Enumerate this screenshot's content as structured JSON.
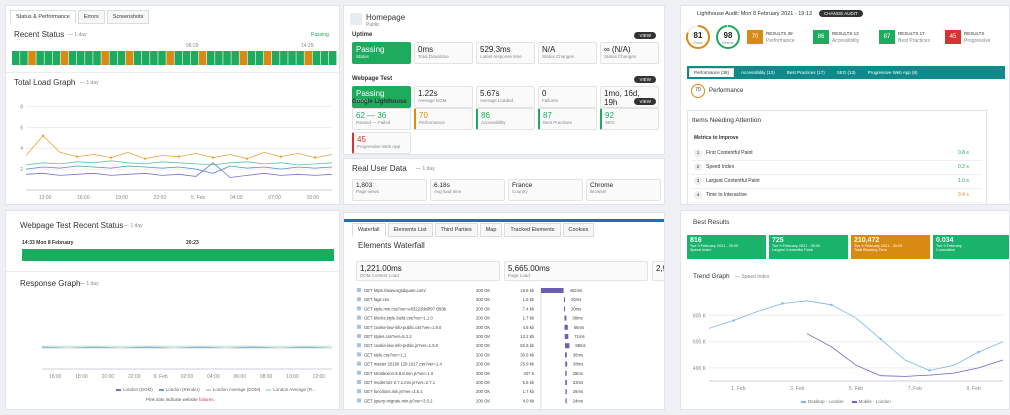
{
  "p1": {
    "tabs": [
      "Status & Performance",
      "Errors",
      "Screenshots"
    ],
    "status_title": "Recent Status",
    "status_period": "— 1 day",
    "legend": [
      "Passing"
    ],
    "status_times": [
      "06:29",
      "14:29"
    ],
    "segments": [
      1,
      1,
      0,
      1,
      1,
      1,
      0,
      1,
      1,
      1,
      1,
      0,
      1,
      1,
      0,
      1,
      1,
      1,
      1,
      0,
      1,
      1,
      1,
      0,
      1,
      1,
      1,
      1,
      0,
      1,
      1,
      0,
      1,
      1,
      1,
      1,
      0,
      1,
      1,
      1
    ],
    "load": {
      "title": "Total Load Graph",
      "period": "— 1 day",
      "ylim": [
        0,
        9
      ],
      "yticks": [
        2,
        4,
        6,
        8
      ],
      "x_tick_labels": [
        "13:00",
        "16:00",
        "19:00",
        "22:00",
        "5. Feb",
        "04:00",
        "07:00",
        "10:00"
      ],
      "series": [
        {
          "color": "#e8a33c",
          "values": [
            3.3,
            5.2,
            3.6,
            3.2,
            3.4,
            3.1,
            3.6,
            3.0,
            3.3,
            3.2,
            3.5,
            3.1,
            3.4,
            3.0,
            3.6,
            3.2,
            3.5,
            3.1,
            3.4
          ]
        },
        {
          "color": "#7b6fd0",
          "values": [
            1.5,
            1.6,
            1.4,
            1.5,
            1.6,
            1.4,
            1.5,
            1.6,
            1.4,
            1.5,
            1.3,
            2.6,
            1.2,
            1.4,
            1.6,
            1.4,
            1.5,
            1.4,
            1.5
          ]
        },
        {
          "color": "#4d8fd6",
          "values": [
            2.0,
            2.2,
            2.1,
            2.3,
            2.2,
            2.1,
            2.3,
            2.2,
            2.1,
            2.2,
            2.0,
            1.6,
            2.3,
            2.1,
            2.2,
            2.0,
            2.2,
            2.1,
            2.2
          ]
        },
        {
          "color": "#5cc79b",
          "values": [
            2.4,
            2.6,
            2.5,
            2.7,
            2.6,
            2.8,
            2.6,
            2.5,
            2.7,
            2.6,
            2.5,
            2.4,
            2.6,
            2.7,
            2.5,
            2.6,
            2.4,
            2.5,
            2.6
          ]
        }
      ]
    }
  },
  "p2": {
    "title": "Homepage",
    "subtitle": "Public",
    "view": "VIEW",
    "sections": [
      {
        "name": "Uptime",
        "stats": [
          [
            "Passing",
            "Status"
          ],
          [
            "0ms",
            "Total Downtime"
          ],
          [
            "529.3ms",
            "Latest response time"
          ],
          [
            "N/A",
            "Status Changes"
          ],
          [
            "∞ (N/A)",
            "Status Changes"
          ]
        ]
      },
      {
        "name": "Webpage Test",
        "stats": [
          [
            "Passing",
            "Status"
          ],
          [
            "1.22s",
            "Average DOM"
          ],
          [
            "5.67s",
            "Average Loaded"
          ],
          [
            "0",
            "Failures"
          ],
          [
            "1mo, 16d, 19h",
            "Status Change"
          ]
        ]
      }
    ],
    "lighthouse": {
      "name": "Google Lighthouse",
      "passed": "62 — 36",
      "passed_label": "Passed — Failed",
      "scores": [
        [
          70,
          "Performance"
        ],
        [
          86,
          "Accessibility"
        ],
        [
          87,
          "Best Practices"
        ],
        [
          92,
          "SEO"
        ],
        [
          45,
          "Progressive Web App"
        ]
      ]
    },
    "rum": {
      "title": "Real User Data",
      "period": "— 1 day",
      "stats": [
        [
          "1,803",
          "Page views"
        ],
        [
          "6.18s",
          "Avg load time"
        ],
        [
          "France",
          "Country"
        ],
        [
          "Chrome",
          "Browser"
        ]
      ]
    }
  },
  "p3": {
    "title": "Lighthouse Audit: Mon 8 February 2021 - 19:13",
    "change": "CHANGE AUDIT",
    "score": 81,
    "score_label": "Score",
    "results": 98,
    "results_label": "Results",
    "cats": [
      [
        70,
        "RESULTS 38",
        "Performance"
      ],
      [
        86,
        "RESULTS 13",
        "Accessibility"
      ],
      [
        87,
        "RESULTS 17",
        "Best Practices"
      ],
      [
        45,
        "RESULTS",
        "Progressive"
      ]
    ],
    "tabs": [
      "Performance (38)",
      "Accessibility (13)",
      "Best Practices (17)",
      "SEO (13)",
      "Progressive Web App (8)"
    ],
    "perf": 70,
    "perf_label": "Performance",
    "attention": "Items Needing Attention",
    "metrics": "Metrics to Improve",
    "items": [
      [
        "1",
        "First Contentful Paint",
        "0.8 s"
      ],
      [
        "2",
        "Speed Index",
        "0.2 s"
      ],
      [
        "3",
        "Largest Contentful Paint",
        "1.0 s"
      ],
      [
        "4",
        "Time to Interactive",
        "3.4 s"
      ]
    ]
  },
  "p4": {
    "title": "Webpage Test Recent Status",
    "period": "— 1 day",
    "times": [
      "14:33 Mon 8 February",
      "20:23"
    ],
    "response": {
      "title": "Response Graph",
      "period": "— 1 day",
      "ylim": [
        0,
        4
      ],
      "x_tick_labels": [
        "16:00",
        "18:00",
        "20:00",
        "22:00",
        "9. Feb",
        "02:00",
        "04:00",
        "06:00",
        "08:00",
        "10:00",
        "12:00"
      ],
      "series": [
        {
          "name": "London (DOM)",
          "color": "#6b6fd6",
          "values": [
            1.2,
            1.2,
            1.2,
            1.2,
            1.2,
            1.2,
            1.2,
            1.2,
            1.2,
            1.2,
            1.2,
            1.2
          ]
        },
        {
          "name": "London (Render)",
          "color": "#5ba0e0",
          "values": [
            1.25,
            1.2,
            1.25,
            1.2,
            1.25,
            1.2,
            1.25,
            1.2,
            1.25,
            1.2,
            1.25,
            1.2
          ]
        },
        {
          "name": "London Average (DOM)",
          "color": "#cfcfcf",
          "values": [
            1.2,
            1.2,
            1.2,
            1.2,
            1.2,
            1.2,
            1.2,
            1.2,
            1.2,
            1.2,
            1.2,
            1.2
          ]
        },
        {
          "name": "London Average (R...",
          "color": "#b8e8cc",
          "values": [
            1.3,
            1.3,
            1.3,
            1.3,
            1.3,
            1.3,
            1.3,
            1.3,
            1.3,
            1.3,
            1.3,
            1.3
          ]
        }
      ],
      "note": "Pink dots indicate website ",
      "note_em": "failures."
    }
  },
  "p5": {
    "tabs": [
      "Waterfall",
      "Elements List",
      "Third Parties",
      "Map",
      "Tracked Elements",
      "Cookies"
    ],
    "title": "Elements Waterfall",
    "summary": [
      [
        "1,221.00ms",
        "DOM Content Load"
      ],
      [
        "5,665.00ms",
        "Page Load"
      ],
      [
        "2,9",
        ""
      ]
    ],
    "scale_max": 1200,
    "rows": [
      [
        "GET https://www.sgsdquote.com/",
        "200 OK",
        "19.6 kb",
        0,
        452,
        "452ms"
      ],
      [
        "GET fags.css",
        "200 OK",
        "1.5 kb",
        460,
        20,
        "20ms"
      ],
      [
        "GET style.min.css?ver=e83221bb0f97 B93b",
        "200 OK",
        "7.4 kb",
        460,
        20,
        "20ms"
      ],
      [
        "GET blocks.style.build.css?ver=1.1.0",
        "200 OK",
        "1.7 kb",
        470,
        38,
        "38ms"
      ],
      [
        "GET cookie-law-info-public.css?ver=1.9.0",
        "200 OK",
        "4.5 kb",
        470,
        66,
        "66ms"
      ],
      [
        "GET styles.css?ver=5.2.2",
        "200 OK",
        "12.2 kb",
        475,
        71,
        "71ms"
      ],
      [
        "GET cookie-law-info-public.js?ver=1.9.0",
        "200 OK",
        "82.6 kb",
        480,
        88,
        "88ms"
      ],
      [
        "GET style.css?ver=1.1",
        "200 OK",
        "30.6 kb",
        480,
        36,
        "36ms"
      ],
      [
        "GET master 20190 129 1917.css?ver=1.4",
        "200 OK",
        "25.9 kb",
        485,
        38,
        "38ms"
      ],
      [
        "GET stroldexion-5.8.8.min.js?ver=1.0",
        "200 OK",
        "347 b",
        485,
        28,
        "28ms"
      ],
      [
        "GET modernizr-2.7.1.min.js?ver=2.7.1",
        "200 OK",
        "5.6 kb",
        485,
        33,
        "33ms"
      ],
      [
        "GET functions.min.js?ver=3.5.1",
        "200 OK",
        "1.7 kb",
        490,
        26,
        "26ms"
      ],
      [
        "GET jquery-migrate.min.js?ver=3.0.2",
        "200 OK",
        "4.0 kb",
        490,
        24,
        "24ms"
      ]
    ]
  },
  "p6": {
    "title": "Best Results",
    "cards": [
      [
        "816",
        "Tue 9 February 2021 - 00:00",
        "Speed Index",
        "#19b36b"
      ],
      [
        "725",
        "Tue 9 February 2021 - 00:00",
        "Largest Contentful Paint",
        "#19b36b"
      ],
      [
        "210,472",
        "Tue 9 February 2021 - 00:00",
        "Total Blocking Time",
        "#d98a12"
      ],
      [
        "0.034",
        "Tue 9 February",
        "Cumulative",
        "#19b36b"
      ]
    ],
    "trend": {
      "title": "Trend Graph",
      "period": "— Speed Index",
      "ylim": [
        300,
        1000
      ],
      "yticks": [
        {
          "value": 400,
          "label": "400 K"
        },
        {
          "value": 600,
          "label": "600 K"
        },
        {
          "value": 800,
          "label": "800 K"
        }
      ],
      "x_tick_labels": [
        "1. Feb",
        "3. Feb",
        "5. Feb",
        "7. Feb",
        "9. Feb"
      ],
      "series": [
        {
          "name": "Desktop - London",
          "color": "#7cb5ec",
          "values": [
            700,
            760,
            830,
            890,
            910,
            880,
            780,
            620,
            460,
            380,
            420,
            520,
            600
          ]
        },
        {
          "name": "Mobile - London",
          "color": "#6b5fd0",
          "values": [
            null,
            null,
            null,
            null,
            660,
            560,
            420,
            340,
            335,
            345,
            360,
            400,
            460
          ]
        }
      ]
    }
  }
}
